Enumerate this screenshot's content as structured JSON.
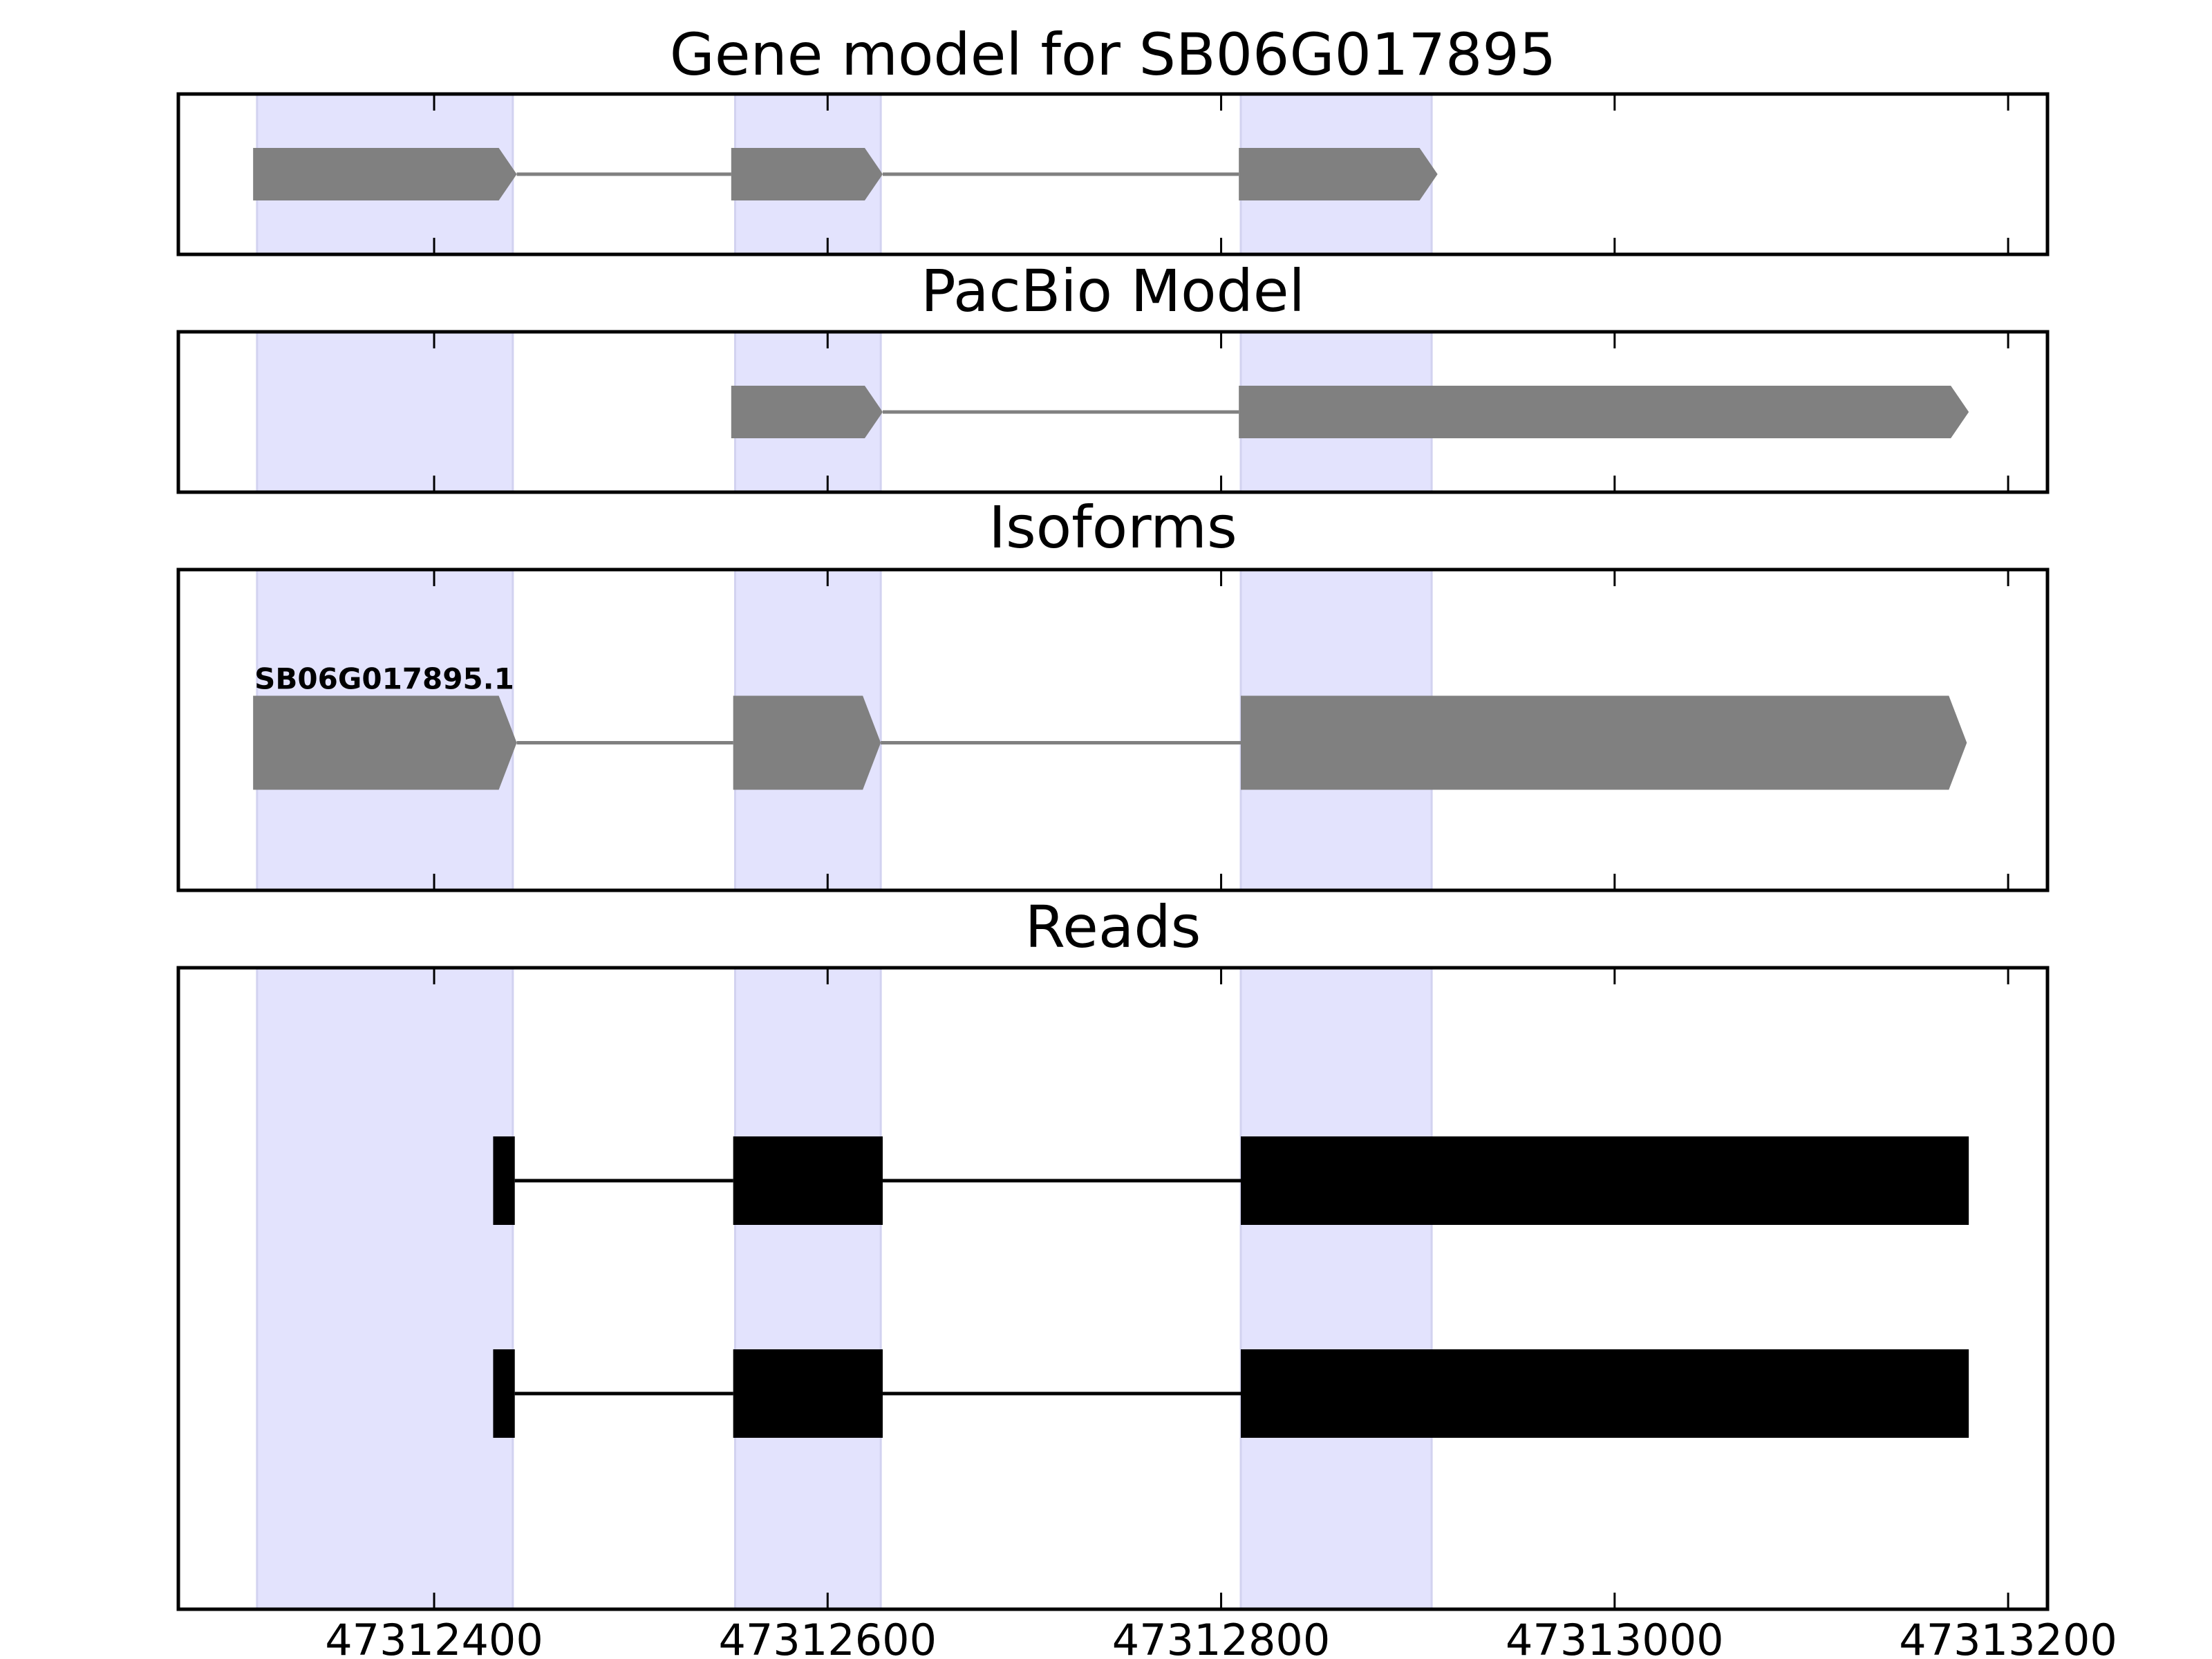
{
  "chart_data": {
    "type": "gene-model-tracks",
    "title": "Gene model for SB06G017895",
    "x_axis": {
      "range": [
        47312270,
        47313220
      ],
      "ticks": [
        47312400,
        47312600,
        47312800,
        47313000,
        47313200
      ],
      "tick_labels": [
        "47312400",
        "47312600",
        "47312800",
        "47313000",
        "47313200"
      ]
    },
    "colors": {
      "highlight": "#e3e3fd",
      "highlight_edge": "#d2d2f0",
      "model_feature": "#808080",
      "read_feature": "#000000",
      "frame": "#000000"
    },
    "highlight_regions": [
      [
        47312310,
        47312440
      ],
      [
        47312553,
        47312627
      ],
      [
        47312810,
        47312907
      ]
    ],
    "panels": [
      {
        "title": "Gene model for SB06G017895",
        "kind": "model",
        "tracks": [
          {
            "label": "",
            "exons": [
              [
                47312308,
                47312442
              ],
              [
                47312551,
                47312628
              ],
              [
                47312809,
                47312910
              ]
            ]
          }
        ]
      },
      {
        "title": "PacBio Model",
        "kind": "model",
        "tracks": [
          {
            "label": "",
            "exons": [
              [
                47312551,
                47312628
              ],
              [
                47312809,
                47313180
              ]
            ]
          }
        ]
      },
      {
        "title": "Isoforms",
        "kind": "model",
        "tracks": [
          {
            "label": "SB06G017895.1",
            "exons": [
              [
                47312308,
                47312442
              ],
              [
                47312552,
                47312627
              ],
              [
                47312810,
                47313179
              ]
            ]
          }
        ]
      },
      {
        "title": "Reads",
        "kind": "reads",
        "tracks": [
          {
            "label": "",
            "exons": [
              [
                47312430,
                47312441
              ],
              [
                47312552,
                47312628
              ],
              [
                47312810,
                47313180
              ]
            ]
          },
          {
            "label": "",
            "exons": [
              [
                47312430,
                47312441
              ],
              [
                47312552,
                47312628
              ],
              [
                47312810,
                47313180
              ]
            ]
          }
        ]
      }
    ]
  }
}
